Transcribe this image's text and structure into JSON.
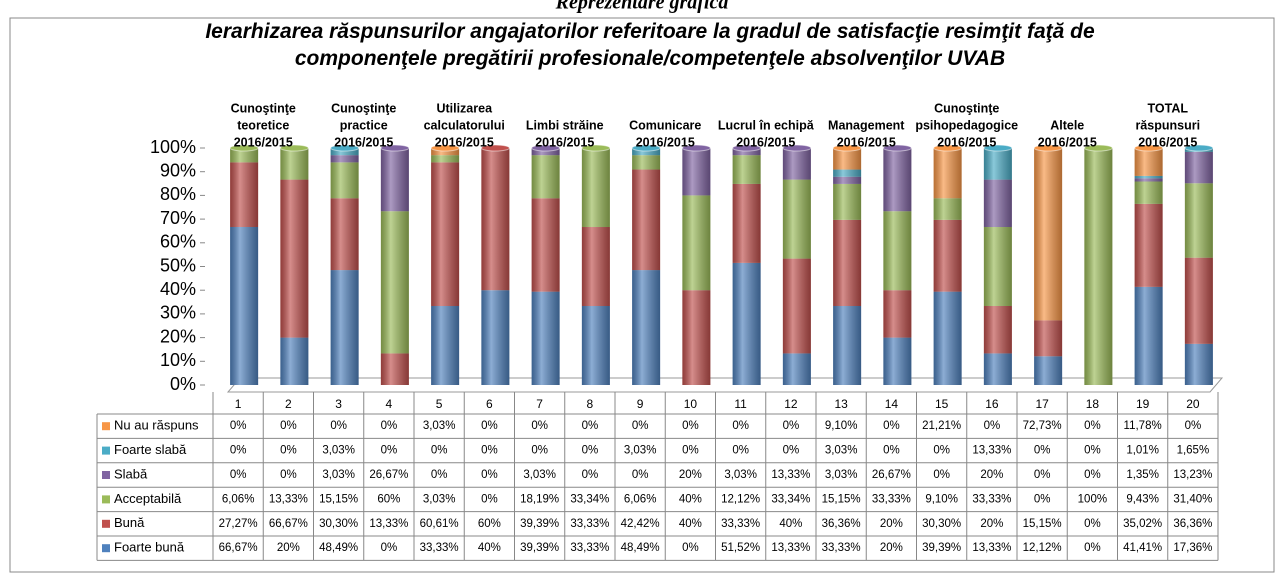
{
  "chart_data": {
    "type": "bar",
    "stacked": true,
    "supertitle": "Reprezentare grafică",
    "title": "Ierarhizarea răspunsurilor angajatorilor referitoare la gradul de satisfacţie resimţit faţă de componenţele pregătirii profesionale/competenţele absolvenţilor UVAB",
    "categories": [
      "1",
      "2",
      "3",
      "4",
      "5",
      "6",
      "7",
      "8",
      "9",
      "10",
      "11",
      "12",
      "13",
      "14",
      "15",
      "16",
      "17",
      "18",
      "19",
      "20"
    ],
    "group_labels": [
      [
        "Cunoştinţe",
        "teoretice",
        "2016/2015"
      ],
      [
        "Cunoştinţe",
        "practice",
        "2016/2015"
      ],
      [
        "Utilizarea",
        "calculatorului",
        "2016/2015"
      ],
      [
        "Limbi străine",
        "2016/2015"
      ],
      [
        "Comunicare",
        "2016/2015"
      ],
      [
        "Lucrul în echipă",
        "2016/2015"
      ],
      [
        "Management",
        "2016/2015"
      ],
      [
        "Cunoştinţe",
        "psihopedagogice",
        "2016/2015"
      ],
      [
        "Altele",
        "2016/2015"
      ],
      [
        "TOTAL",
        "răspunsuri",
        "2016/2015"
      ]
    ],
    "ylim": [
      0,
      100
    ],
    "yticks": [
      {
        "value": 0,
        "label": "0%"
      },
      {
        "value": 10,
        "label": "10%"
      },
      {
        "value": 20,
        "label": "20%"
      },
      {
        "value": 30,
        "label": "30%"
      },
      {
        "value": 40,
        "label": "40%"
      },
      {
        "value": 50,
        "label": "50%"
      },
      {
        "value": 60,
        "label": "60%"
      },
      {
        "value": 70,
        "label": "70%"
      },
      {
        "value": 80,
        "label": "80%"
      },
      {
        "value": 90,
        "label": "90%"
      },
      {
        "value": 100,
        "label": "100%"
      }
    ],
    "series": [
      {
        "name": "Foarte bună",
        "color": "#4f81bd",
        "values": [
          66.67,
          20,
          48.49,
          0,
          33.33,
          40,
          39.39,
          33.33,
          48.49,
          0,
          51.52,
          13.33,
          33.33,
          20,
          39.39,
          13.33,
          12.12,
          0,
          41.41,
          17.36
        ],
        "value_labels": [
          "66,67%",
          "20%",
          "48,49%",
          "0%",
          "33,33%",
          "40%",
          "39,39%",
          "33,33%",
          "48,49%",
          "0%",
          "51,52%",
          "13,33%",
          "33,33%",
          "20%",
          "39,39%",
          "13,33%",
          "12,12%",
          "0%",
          "41,41%",
          "17,36%"
        ]
      },
      {
        "name": "Bună",
        "color": "#c0504d",
        "values": [
          27.27,
          66.67,
          30.3,
          13.33,
          60.61,
          60,
          39.39,
          33.33,
          42.42,
          40,
          33.33,
          40,
          36.36,
          20,
          30.3,
          20,
          15.15,
          0,
          35.02,
          36.36
        ],
        "value_labels": [
          "27,27%",
          "66,67%",
          "30,30%",
          "13,33%",
          "60,61%",
          "60%",
          "39,39%",
          "33,33%",
          "42,42%",
          "40%",
          "33,33%",
          "40%",
          "36,36%",
          "20%",
          "30,30%",
          "20%",
          "15,15%",
          "0%",
          "35,02%",
          "36,36%"
        ]
      },
      {
        "name": "Acceptabilă",
        "color": "#9bbb59",
        "values": [
          6.06,
          13.33,
          15.15,
          60,
          3.03,
          0,
          18.19,
          33.34,
          6.06,
          40,
          12.12,
          33.34,
          15.15,
          33.33,
          9.1,
          33.33,
          0,
          100,
          9.43,
          31.4
        ],
        "value_labels": [
          "6,06%",
          "13,33%",
          "15,15%",
          "60%",
          "3,03%",
          "0%",
          "18,19%",
          "33,34%",
          "6,06%",
          "40%",
          "12,12%",
          "33,34%",
          "15,15%",
          "33,33%",
          "9,10%",
          "33,33%",
          "0%",
          "100%",
          "9,43%",
          "31,40%"
        ]
      },
      {
        "name": "Slabă",
        "color": "#8064a2",
        "values": [
          0,
          0,
          3.03,
          26.67,
          0,
          0,
          3.03,
          0,
          0,
          20,
          3.03,
          13.33,
          3.03,
          26.67,
          0,
          20,
          0,
          0,
          1.35,
          13.23
        ],
        "value_labels": [
          "0%",
          "0%",
          "3,03%",
          "26,67%",
          "0%",
          "0%",
          "3,03%",
          "0%",
          "0%",
          "20%",
          "3,03%",
          "13,33%",
          "3,03%",
          "26,67%",
          "0%",
          "20%",
          "0%",
          "0%",
          "1,35%",
          "13,23%"
        ]
      },
      {
        "name": "Foarte slabă",
        "color": "#4bacc6",
        "values": [
          0,
          0,
          3.03,
          0,
          0,
          0,
          0,
          0,
          3.03,
          0,
          0,
          0,
          3.03,
          0,
          0,
          13.33,
          0,
          0,
          1.01,
          1.65
        ],
        "value_labels": [
          "0%",
          "0%",
          "3,03%",
          "0%",
          "0%",
          "0%",
          "0%",
          "0%",
          "3,03%",
          "0%",
          "0%",
          "0%",
          "3,03%",
          "0%",
          "0%",
          "13,33%",
          "0%",
          "0%",
          "1,01%",
          "1,65%"
        ]
      },
      {
        "name": "Nu au răspuns",
        "color": "#f79646",
        "values": [
          0,
          0,
          0,
          0,
          3.03,
          0,
          0,
          0,
          0,
          0,
          0,
          0,
          9.1,
          0,
          21.21,
          0,
          72.73,
          0,
          11.78,
          0
        ],
        "value_labels": [
          "0%",
          "0%",
          "0%",
          "0%",
          "3,03%",
          "0%",
          "0%",
          "0%",
          "0%",
          "0%",
          "0%",
          "0%",
          "9,10%",
          "0%",
          "21,21%",
          "0%",
          "72,73%",
          "0%",
          "11,78%",
          "0%"
        ]
      }
    ]
  }
}
